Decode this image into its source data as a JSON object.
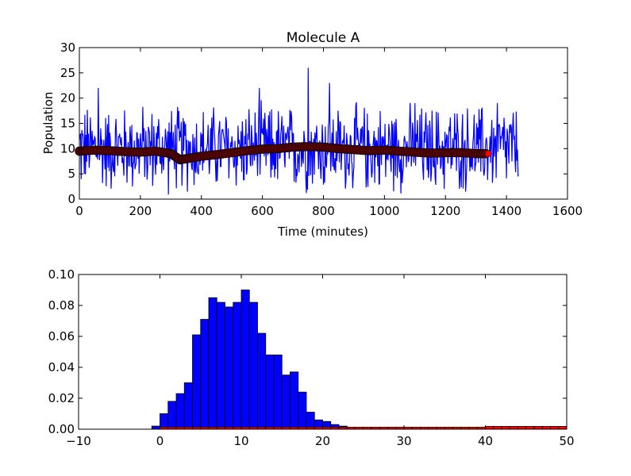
{
  "chart_data": [
    {
      "type": "line",
      "title": "Molecule A",
      "xlabel": "Time (minutes)",
      "ylabel": "Population",
      "xlim": [
        0,
        1600
      ],
      "ylim": [
        0,
        30
      ],
      "xticks": [
        "0",
        "200",
        "400",
        "600",
        "800",
        "1000",
        "1200",
        "1400",
        "1600"
      ],
      "yticks": [
        "0",
        "5",
        "10",
        "15",
        "20",
        "25",
        "30"
      ],
      "grid": false,
      "series": [
        {
          "style": "noisy-line",
          "color": "#0000ff",
          "x_range": [
            0,
            1440
          ],
          "mean": 10,
          "min": 0,
          "max": 26,
          "notable_peaks": [
            {
              "x": 62,
              "y": 22
            },
            {
              "x": 590,
              "y": 22
            },
            {
              "x": 750,
              "y": 26
            },
            {
              "x": 820,
              "y": 23
            },
            {
              "x": 1100,
              "y": 19
            },
            {
              "x": 1370,
              "y": 19
            }
          ]
        },
        {
          "style": "running-mean-markers",
          "color": "#5a0000",
          "last_marker_color": "#ff0000",
          "x": [
            0,
            50,
            100,
            150,
            200,
            250,
            300,
            330,
            360,
            400,
            450,
            500,
            550,
            600,
            650,
            700,
            750,
            800,
            850,
            900,
            950,
            1000,
            1050,
            1100,
            1150,
            1200,
            1250,
            1300,
            1340
          ],
          "y": [
            9.5,
            9.7,
            9.6,
            9.4,
            9.3,
            9.5,
            9.0,
            7.8,
            8.1,
            8.5,
            8.8,
            9.2,
            9.6,
            9.9,
            10.0,
            10.3,
            10.4,
            10.3,
            10.0,
            9.8,
            9.6,
            9.7,
            9.5,
            9.3,
            9.1,
            9.2,
            9.2,
            9.0,
            9.0
          ]
        }
      ]
    },
    {
      "type": "bar",
      "title": "",
      "xlabel": "",
      "ylabel": "",
      "xlim": [
        -10,
        50
      ],
      "ylim": [
        0,
        0.1
      ],
      "xticks": [
        "−10",
        "0",
        "10",
        "20",
        "30",
        "40",
        "50"
      ],
      "yticks": [
        "0.00",
        "0.02",
        "0.04",
        "0.06",
        "0.08",
        "0.10"
      ],
      "grid": false,
      "bin_width": 1,
      "series": [
        {
          "color": "#0000ff",
          "bins_start": [
            -1,
            0,
            1,
            2,
            3,
            4,
            5,
            6,
            7,
            8,
            9,
            10,
            11,
            12,
            13,
            14,
            15,
            16,
            17,
            18,
            19,
            20,
            21,
            22,
            23,
            24
          ],
          "values": [
            0.002,
            0.01,
            0.018,
            0.023,
            0.03,
            0.061,
            0.071,
            0.085,
            0.082,
            0.079,
            0.082,
            0.09,
            0.082,
            0.062,
            0.048,
            0.048,
            0.035,
            0.037,
            0.024,
            0.011,
            0.006,
            0.005,
            0.003,
            0.002,
            0.001,
            0.0005
          ]
        },
        {
          "color": "#ff0000",
          "bins_start": [
            0,
            1,
            2,
            3,
            4,
            5,
            6,
            7,
            8,
            9,
            10,
            11,
            12,
            13,
            14,
            15,
            16,
            17,
            18,
            19,
            20,
            21,
            22,
            23,
            24,
            25,
            26,
            27,
            28,
            29,
            30,
            31,
            32,
            33,
            34,
            35,
            36,
            37,
            38,
            39,
            40,
            41,
            42,
            43,
            44,
            45,
            46,
            47,
            48,
            49
          ],
          "values": [
            0.0013,
            0.0013,
            0.0013,
            0.0013,
            0.0013,
            0.0013,
            0.0013,
            0.0013,
            0.0013,
            0.0013,
            0.0013,
            0.0013,
            0.0013,
            0.0013,
            0.0013,
            0.0013,
            0.0013,
            0.0013,
            0.0013,
            0.0013,
            0.0013,
            0.0013,
            0.0013,
            0.0013,
            0.0013,
            0.0013,
            0.0013,
            0.0013,
            0.0013,
            0.0013,
            0.0013,
            0.0013,
            0.0013,
            0.0013,
            0.0013,
            0.0013,
            0.0013,
            0.0013,
            0.0013,
            0.0013,
            0.0018,
            0.0018,
            0.0018,
            0.0018,
            0.0018,
            0.0018,
            0.0018,
            0.0018,
            0.0018,
            0.0018
          ]
        }
      ]
    }
  ]
}
